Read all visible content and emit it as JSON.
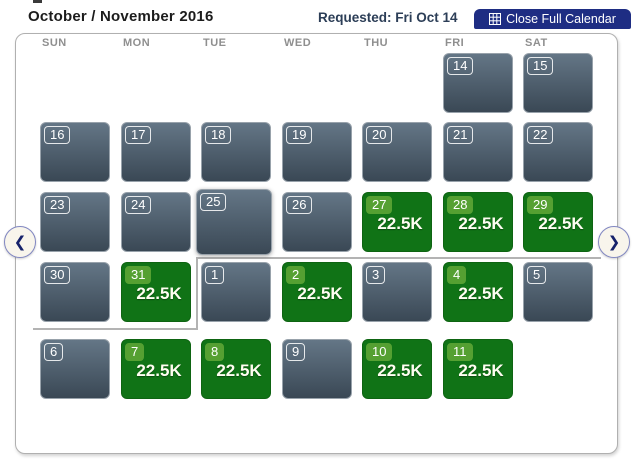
{
  "header": {
    "title": "October / November 2016",
    "requested": "Requested: Fri Oct 14",
    "close_button_label": "Close Full Calendar",
    "button_color": "#1e2d83"
  },
  "nav": {
    "prev_icon": "❮",
    "next_icon": "❯"
  },
  "calendar": {
    "day_headers": [
      "SUN",
      "MON",
      "TUE",
      "WED",
      "THU",
      "FRI",
      "SAT"
    ],
    "award_price": "22.5K",
    "colors": {
      "available_green": "#107316",
      "available_badge_green": "#55a032",
      "unavailable_gradient_top": "#647686",
      "unavailable_gradient_bottom": "#3a4855"
    },
    "cells": [
      {
        "day": "14",
        "row": 0,
        "col": 5,
        "available": false
      },
      {
        "day": "15",
        "row": 0,
        "col": 6,
        "available": false
      },
      {
        "day": "16",
        "row": 1,
        "col": 0,
        "available": false
      },
      {
        "day": "17",
        "row": 1,
        "col": 1,
        "available": false
      },
      {
        "day": "18",
        "row": 1,
        "col": 2,
        "available": false
      },
      {
        "day": "19",
        "row": 1,
        "col": 3,
        "available": false
      },
      {
        "day": "20",
        "row": 1,
        "col": 4,
        "available": false
      },
      {
        "day": "21",
        "row": 1,
        "col": 5,
        "available": false
      },
      {
        "day": "22",
        "row": 1,
        "col": 6,
        "available": false
      },
      {
        "day": "23",
        "row": 2,
        "col": 0,
        "available": false
      },
      {
        "day": "24",
        "row": 2,
        "col": 1,
        "available": false
      },
      {
        "day": "25",
        "row": 2,
        "col": 2,
        "available": false,
        "selected": true
      },
      {
        "day": "26",
        "row": 2,
        "col": 3,
        "available": false
      },
      {
        "day": "27",
        "row": 2,
        "col": 4,
        "available": true,
        "price": "22.5K"
      },
      {
        "day": "28",
        "row": 2,
        "col": 5,
        "available": true,
        "price": "22.5K"
      },
      {
        "day": "29",
        "row": 2,
        "col": 6,
        "available": true,
        "price": "22.5K"
      },
      {
        "day": "30",
        "row": 3,
        "col": 0,
        "available": false
      },
      {
        "day": "31",
        "row": 3,
        "col": 1,
        "available": true,
        "price": "22.5K"
      },
      {
        "day": "1",
        "row": 3,
        "col": 2,
        "available": false
      },
      {
        "day": "2",
        "row": 3,
        "col": 3,
        "available": true,
        "price": "22.5K"
      },
      {
        "day": "3",
        "row": 3,
        "col": 4,
        "available": false
      },
      {
        "day": "4",
        "row": 3,
        "col": 5,
        "available": true,
        "price": "22.5K"
      },
      {
        "day": "5",
        "row": 3,
        "col": 6,
        "available": false
      },
      {
        "day": "6",
        "row": 4,
        "col": 0,
        "available": false
      },
      {
        "day": "7",
        "row": 4,
        "col": 1,
        "available": true,
        "price": "22.5K"
      },
      {
        "day": "8",
        "row": 4,
        "col": 2,
        "available": true,
        "price": "22.5K"
      },
      {
        "day": "9",
        "row": 4,
        "col": 3,
        "available": false
      },
      {
        "day": "10",
        "row": 4,
        "col": 4,
        "available": true,
        "price": "22.5K"
      },
      {
        "day": "11",
        "row": 4,
        "col": 5,
        "available": true,
        "price": "22.5K"
      }
    ]
  }
}
